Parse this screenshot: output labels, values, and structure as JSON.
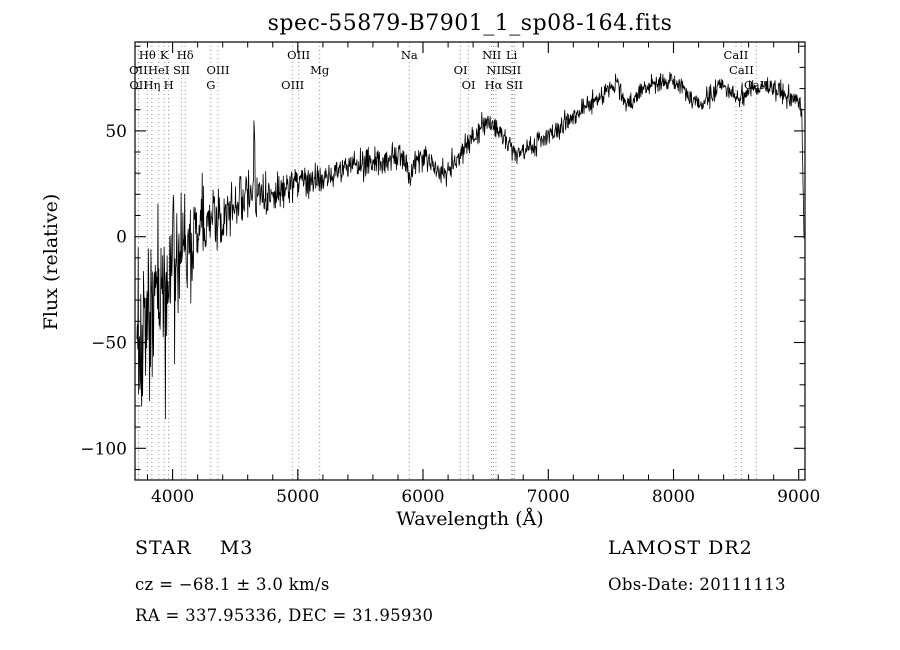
{
  "title": "spec-55879-B7901_1_sp08-164.fits",
  "footer": {
    "class_label": "STAR    M3",
    "survey": "LAMOST DR2",
    "cz": "cz = −68.1 ± 3.0 km/s",
    "obs_date": "Obs-Date: 20111113",
    "radec": "RA = 337.95336, DEC =  31.95930"
  },
  "chart_data": {
    "type": "line",
    "title": "spec-55879-B7901_1_sp08-164.fits",
    "xlabel": "Wavelength (Å)",
    "ylabel": "Flux (relative)",
    "xlim": [
      3700,
      9050
    ],
    "ylim": [
      -115,
      92
    ],
    "x_ticks": [
      4000,
      5000,
      6000,
      7000,
      8000,
      9000
    ],
    "y_ticks": [
      -100,
      -50,
      0,
      50
    ],
    "x_minor_step": 200,
    "y_minor_step": 10,
    "grid": false,
    "line_color": "#000000",
    "marker_line_color": "#8a8a8a",
    "noise_seed": 1337,
    "sample_step": 3.5,
    "envelope": [
      [
        3705,
        -42
      ],
      [
        3760,
        -40
      ],
      [
        3820,
        -34
      ],
      [
        3880,
        -27
      ],
      [
        3940,
        -20
      ],
      [
        4000,
        -13
      ],
      [
        4060,
        -8
      ],
      [
        4120,
        -4
      ],
      [
        4180,
        0
      ],
      [
        4240,
        4
      ],
      [
        4300,
        7
      ],
      [
        4360,
        10
      ],
      [
        4420,
        13
      ],
      [
        4480,
        15
      ],
      [
        4540,
        17
      ],
      [
        4600,
        19
      ],
      [
        4642,
        20
      ],
      [
        4652,
        60
      ],
      [
        4662,
        20
      ],
      [
        4720,
        21
      ],
      [
        4800,
        22
      ],
      [
        4900,
        24
      ],
      [
        5000,
        26
      ],
      [
        5100,
        28
      ],
      [
        5160,
        28
      ],
      [
        5200,
        27
      ],
      [
        5260,
        30
      ],
      [
        5340,
        32
      ],
      [
        5420,
        33
      ],
      [
        5500,
        34
      ],
      [
        5600,
        36
      ],
      [
        5700,
        37
      ],
      [
        5800,
        39
      ],
      [
        5860,
        36
      ],
      [
        5895,
        29
      ],
      [
        5930,
        34
      ],
      [
        6000,
        38
      ],
      [
        6060,
        36
      ],
      [
        6120,
        31
      ],
      [
        6180,
        30
      ],
      [
        6240,
        34
      ],
      [
        6300,
        40
      ],
      [
        6360,
        44
      ],
      [
        6420,
        49
      ],
      [
        6480,
        53
      ],
      [
        6530,
        55
      ],
      [
        6570,
        52
      ],
      [
        6620,
        49
      ],
      [
        6680,
        44
      ],
      [
        6740,
        39
      ],
      [
        6800,
        40
      ],
      [
        6860,
        43
      ],
      [
        6920,
        45
      ],
      [
        6980,
        47
      ],
      [
        7050,
        50
      ],
      [
        7120,
        53
      ],
      [
        7200,
        57
      ],
      [
        7300,
        62
      ],
      [
        7400,
        66
      ],
      [
        7480,
        70
      ],
      [
        7550,
        72
      ],
      [
        7600,
        64
      ],
      [
        7650,
        62
      ],
      [
        7700,
        67
      ],
      [
        7760,
        70
      ],
      [
        7840,
        72
      ],
      [
        7920,
        73
      ],
      [
        8000,
        74
      ],
      [
        8080,
        70
      ],
      [
        8160,
        64
      ],
      [
        8220,
        62
      ],
      [
        8300,
        67
      ],
      [
        8380,
        71
      ],
      [
        8460,
        69
      ],
      [
        8520,
        66
      ],
      [
        8600,
        69
      ],
      [
        8700,
        72
      ],
      [
        8800,
        70
      ],
      [
        8900,
        68
      ],
      [
        8970,
        66
      ],
      [
        9010,
        63
      ],
      [
        9025,
        55
      ],
      [
        9035,
        25
      ],
      [
        9042,
        2
      ]
    ],
    "noise_profile": [
      [
        3705,
        42
      ],
      [
        3800,
        38
      ],
      [
        3900,
        30
      ],
      [
        4000,
        26
      ],
      [
        4100,
        22
      ],
      [
        4200,
        18
      ],
      [
        4300,
        15
      ],
      [
        4400,
        13
      ],
      [
        4500,
        11
      ],
      [
        4700,
        9
      ],
      [
        4900,
        8
      ],
      [
        5100,
        7
      ],
      [
        5400,
        6
      ],
      [
        5800,
        6
      ],
      [
        6200,
        5.5
      ],
      [
        6600,
        5
      ],
      [
        7000,
        4.5
      ],
      [
        7600,
        4
      ],
      [
        8200,
        4
      ],
      [
        8800,
        4.5
      ],
      [
        9042,
        5
      ]
    ],
    "spectral_lines": [
      {
        "label": "Hθ",
        "wavelength": 3798,
        "row": 1
      },
      {
        "label": "K",
        "wavelength": 3933,
        "row": 1
      },
      {
        "label": "Hδ",
        "wavelength": 4101,
        "row": 1
      },
      {
        "label": "OIII",
        "wavelength": 5007,
        "row": 1
      },
      {
        "label": "Na",
        "wavelength": 5890,
        "row": 1
      },
      {
        "label": "NII",
        "wavelength": 6548,
        "row": 1
      },
      {
        "label": "Li",
        "wavelength": 6708,
        "row": 1
      },
      {
        "label": "CaII",
        "wavelength": 8498,
        "row": 1
      },
      {
        "label": "OII",
        "wavelength": 3727,
        "row": 2
      },
      {
        "label": "HeI",
        "wavelength": 3889,
        "row": 2
      },
      {
        "label": "SII",
        "wavelength": 4072,
        "row": 2
      },
      {
        "label": "OIII",
        "wavelength": 4363,
        "row": 2
      },
      {
        "label": "Mg",
        "wavelength": 5175,
        "row": 2
      },
      {
        "label": "OI",
        "wavelength": 6300,
        "row": 2
      },
      {
        "label": "NII",
        "wavelength": 6583,
        "row": 2
      },
      {
        "label": "SII",
        "wavelength": 6716,
        "row": 2
      },
      {
        "label": "CaII",
        "wavelength": 8542,
        "row": 2
      },
      {
        "label": "OII",
        "wavelength": 3729,
        "row": 3
      },
      {
        "label": "Hη",
        "wavelength": 3835,
        "row": 3
      },
      {
        "label": "H",
        "wavelength": 3968,
        "row": 3
      },
      {
        "label": "G",
        "wavelength": 4305,
        "row": 3
      },
      {
        "label": "OIII",
        "wavelength": 4959,
        "row": 3
      },
      {
        "label": "OI",
        "wavelength": 6364,
        "row": 3
      },
      {
        "label": "Hα",
        "wavelength": 6563,
        "row": 3
      },
      {
        "label": "SII",
        "wavelength": 6731,
        "row": 3
      },
      {
        "label": "CaII",
        "wavelength": 8662,
        "row": 3
      }
    ]
  }
}
